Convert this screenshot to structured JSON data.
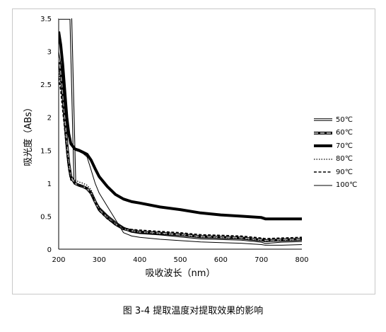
{
  "figure": {
    "caption": "图 3-4 提取温度对提取效果的影响"
  },
  "chart_data": {
    "type": "line",
    "title": "",
    "xlabel": "吸收波长（nm）",
    "ylabel": "吸光度（ABs）",
    "xlim": [
      200,
      800
    ],
    "ylim": [
      0,
      3.5
    ],
    "x_ticks": [
      200,
      300,
      400,
      500,
      600,
      700,
      800
    ],
    "y_ticks": [
      0,
      0.5,
      1,
      1.5,
      2,
      2.5,
      3,
      3.5
    ],
    "x_tick_labels": [
      "200",
      "300",
      "400",
      "500",
      "600",
      "700",
      "800"
    ],
    "y_tick_labels": [
      "0",
      "0.5",
      "1",
      "1.5",
      "2",
      "2.5",
      "3",
      "3.5"
    ],
    "grid": false,
    "legend_position": "right",
    "x": [
      200,
      205,
      210,
      215,
      220,
      225,
      230,
      240,
      250,
      260,
      270,
      280,
      290,
      300,
      320,
      340,
      360,
      380,
      400,
      450,
      500,
      550,
      600,
      650,
      700,
      710,
      750,
      800
    ],
    "series": [
      {
        "name": "50℃",
        "style": "double",
        "values": [
          3.5,
          3.5,
          3.5,
          3.5,
          3.5,
          3.5,
          3.5,
          1.0,
          0.97,
          0.95,
          0.92,
          0.85,
          0.72,
          0.62,
          0.5,
          0.4,
          0.32,
          0.27,
          0.25,
          0.23,
          0.2,
          0.17,
          0.16,
          0.15,
          0.12,
          0.1,
          0.12,
          0.13
        ]
      },
      {
        "name": "60℃",
        "style": "gray-dash",
        "values": [
          2.9,
          2.7,
          2.4,
          2.0,
          1.6,
          1.3,
          1.1,
          1.0,
          0.97,
          0.95,
          0.92,
          0.85,
          0.72,
          0.6,
          0.48,
          0.38,
          0.31,
          0.28,
          0.26,
          0.24,
          0.22,
          0.19,
          0.18,
          0.17,
          0.14,
          0.13,
          0.14,
          0.15
        ]
      },
      {
        "name": "70℃",
        "style": "thick",
        "values": [
          3.3,
          3.1,
          2.8,
          2.4,
          2.0,
          1.75,
          1.6,
          1.52,
          1.5,
          1.47,
          1.44,
          1.35,
          1.22,
          1.1,
          0.95,
          0.83,
          0.76,
          0.72,
          0.7,
          0.64,
          0.6,
          0.55,
          0.52,
          0.5,
          0.48,
          0.46,
          0.46,
          0.46
        ]
      },
      {
        "name": "80℃",
        "style": "dotted",
        "values": [
          2.7,
          2.5,
          2.2,
          1.85,
          1.5,
          1.25,
          1.1,
          1.05,
          1.02,
          1.0,
          0.97,
          0.9,
          0.75,
          0.62,
          0.48,
          0.38,
          0.31,
          0.28,
          0.26,
          0.23,
          0.21,
          0.18,
          0.17,
          0.16,
          0.13,
          0.12,
          0.13,
          0.14
        ]
      },
      {
        "name": "90℃",
        "style": "dashed",
        "values": [
          2.6,
          2.4,
          2.1,
          1.8,
          1.45,
          1.2,
          1.05,
          1.0,
          0.97,
          0.95,
          0.92,
          0.85,
          0.7,
          0.58,
          0.46,
          0.37,
          0.32,
          0.3,
          0.29,
          0.27,
          0.25,
          0.22,
          0.21,
          0.2,
          0.17,
          0.16,
          0.17,
          0.18
        ]
      },
      {
        "name": "100℃",
        "style": "thin",
        "values": [
          3.0,
          2.8,
          2.5,
          2.1,
          1.85,
          1.7,
          1.6,
          1.5,
          1.48,
          1.45,
          1.4,
          1.2,
          1.0,
          0.85,
          0.65,
          0.45,
          0.25,
          0.2,
          0.18,
          0.15,
          0.13,
          0.11,
          0.1,
          0.09,
          0.07,
          0.06,
          0.06,
          0.07
        ]
      }
    ]
  }
}
